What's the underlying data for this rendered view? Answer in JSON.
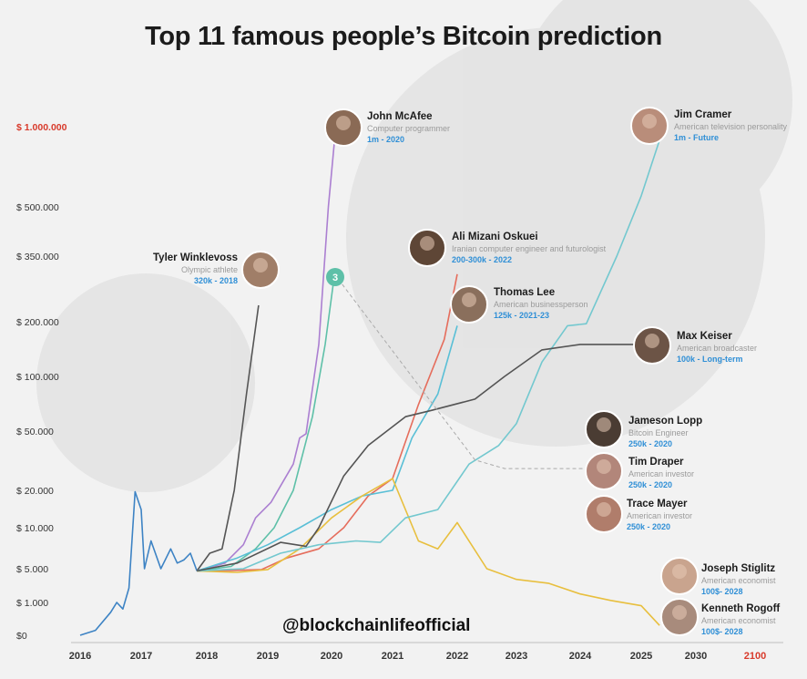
{
  "title": "Top 11 famous people’s Bitcoin prediction",
  "handle": "@blockchainlifeofficial",
  "chart_data": {
    "type": "line",
    "title": "Top 11 famous people’s Bitcoin prediction",
    "xlabel": "",
    "ylabel": "",
    "x_ticks": [
      {
        "label": "2016",
        "highlight": false
      },
      {
        "label": "2017",
        "highlight": false
      },
      {
        "label": "2018",
        "highlight": false
      },
      {
        "label": "2019",
        "highlight": false
      },
      {
        "label": "2020",
        "highlight": false
      },
      {
        "label": "2021",
        "highlight": false
      },
      {
        "label": "2022",
        "highlight": false
      },
      {
        "label": "2023",
        "highlight": false
      },
      {
        "label": "2024",
        "highlight": false
      },
      {
        "label": "2025",
        "highlight": false
      },
      {
        "label": "2030",
        "highlight": false
      },
      {
        "label": "2100",
        "highlight": true
      }
    ],
    "y_ticks": [
      {
        "label": "$0",
        "value": 0,
        "highlight": false
      },
      {
        "label": "$ 1.000",
        "value": 1000,
        "highlight": false
      },
      {
        "label": "$ 5.000",
        "value": 5000,
        "highlight": false
      },
      {
        "label": "$ 10.000",
        "value": 10000,
        "highlight": false
      },
      {
        "label": "$ 20.000",
        "value": 20000,
        "highlight": false
      },
      {
        "label": "$ 50.000",
        "value": 50000,
        "highlight": false
      },
      {
        "label": "$ 100.000",
        "value": 100000,
        "highlight": false
      },
      {
        "label": "$ 200.000",
        "value": 200000,
        "highlight": false
      },
      {
        "label": "$ 350.000",
        "value": 350000,
        "highlight": false
      },
      {
        "label": "$ 500.000",
        "value": 500000,
        "highlight": false
      },
      {
        "label": "$ 1.000.000",
        "value": 1000000,
        "highlight": true
      }
    ],
    "grid": false,
    "legend": "none",
    "series": [
      {
        "color": "#3d83c4",
        "points": [
          [
            2016.0,
            0
          ],
          [
            2016.25,
            150
          ],
          [
            2016.5,
            700
          ],
          [
            2016.6,
            1000
          ],
          [
            2016.7,
            800
          ],
          [
            2016.8,
            2000
          ],
          [
            2016.9,
            19500
          ],
          [
            2017.0,
            14000
          ],
          [
            2017.05,
            5000
          ],
          [
            2017.15,
            8000
          ],
          [
            2017.3,
            5000
          ],
          [
            2017.45,
            7000
          ],
          [
            2017.55,
            5500
          ],
          [
            2017.65,
            5800
          ],
          [
            2017.75,
            6500
          ],
          [
            2017.85,
            4500
          ]
        ]
      },
      {
        "color": "#555555",
        "points": [
          [
            2017.85,
            4500
          ],
          [
            2018.05,
            6500
          ],
          [
            2018.25,
            7000
          ],
          [
            2018.45,
            20000
          ],
          [
            2018.65,
            80000
          ],
          [
            2018.85,
            230000
          ]
        ]
      },
      {
        "color": "#ab7fd1",
        "points": [
          [
            2017.85,
            4500
          ],
          [
            2018.3,
            5500
          ],
          [
            2018.6,
            7500
          ],
          [
            2018.8,
            12000
          ],
          [
            2019.05,
            16000
          ],
          [
            2019.4,
            30000
          ],
          [
            2019.5,
            45000
          ],
          [
            2019.6,
            48000
          ],
          [
            2019.8,
            150000
          ],
          [
            2019.95,
            500000
          ],
          [
            2020.05,
            890000
          ]
        ]
      },
      {
        "color": "#5ec0a8",
        "points": [
          [
            2017.85,
            4500
          ],
          [
            2018.4,
            5200
          ],
          [
            2018.8,
            7000
          ],
          [
            2019.1,
            10000
          ],
          [
            2019.4,
            20000
          ],
          [
            2019.7,
            60000
          ],
          [
            2019.9,
            150000
          ],
          [
            2020.05,
            300000
          ]
        ]
      },
      {
        "color": "#e56d5c",
        "points": [
          [
            2017.85,
            4500
          ],
          [
            2018.4,
            4600
          ],
          [
            2018.9,
            4800
          ],
          [
            2019.3,
            6000
          ],
          [
            2019.8,
            7000
          ],
          [
            2020.2,
            10000
          ],
          [
            2020.6,
            18000
          ],
          [
            2021.0,
            24000
          ],
          [
            2021.4,
            70000
          ],
          [
            2021.8,
            160000
          ],
          [
            2022.0,
            300000
          ]
        ]
      },
      {
        "color": "#59bfd6",
        "points": [
          [
            2017.85,
            4500
          ],
          [
            2018.5,
            6000
          ],
          [
            2019.0,
            7500
          ],
          [
            2019.5,
            10000
          ],
          [
            2020.0,
            14000
          ],
          [
            2020.5,
            18000
          ],
          [
            2021.0,
            20000
          ],
          [
            2021.3,
            45000
          ],
          [
            2021.7,
            80000
          ],
          [
            2022.0,
            190000
          ]
        ]
      },
      {
        "color": "#e8bf3e",
        "points": [
          [
            2017.85,
            4500
          ],
          [
            2018.5,
            4200
          ],
          [
            2019.0,
            4800
          ],
          [
            2019.5,
            7000
          ],
          [
            2020.0,
            12000
          ],
          [
            2020.5,
            18000
          ],
          [
            2021.0,
            24000
          ],
          [
            2021.4,
            8000
          ],
          [
            2021.7,
            7000
          ],
          [
            2022.0,
            11000
          ],
          [
            2022.5,
            5000
          ],
          [
            2023.0,
            3000
          ],
          [
            2023.5,
            2500
          ],
          [
            2024.0,
            1500
          ],
          [
            2024.5,
            1100
          ],
          [
            2025.0,
            900
          ],
          [
            2025.3,
            300
          ]
        ]
      },
      {
        "color": "#73c8cf",
        "points": [
          [
            2017.85,
            4500
          ],
          [
            2018.6,
            5000
          ],
          [
            2019.2,
            6500
          ],
          [
            2019.8,
            7500
          ],
          [
            2020.4,
            8000
          ],
          [
            2020.8,
            7800
          ],
          [
            2021.2,
            12000
          ],
          [
            2021.7,
            14000
          ],
          [
            2022.2,
            30000
          ],
          [
            2022.7,
            40000
          ],
          [
            2023.0,
            55000
          ],
          [
            2023.4,
            120000
          ],
          [
            2023.8,
            190000
          ],
          [
            2024.1,
            195000
          ],
          [
            2024.6,
            350000
          ],
          [
            2025.0,
            550000
          ],
          [
            2025.3,
            890000
          ]
        ]
      },
      {
        "color": "#545454",
        "points": [
          [
            2017.85,
            4500
          ],
          [
            2018.5,
            5500
          ],
          [
            2019.2,
            7800
          ],
          [
            2019.6,
            7300
          ],
          [
            2019.8,
            10000
          ],
          [
            2020.2,
            25000
          ],
          [
            2020.6,
            40000
          ],
          [
            2021.2,
            60000
          ],
          [
            2021.6,
            65000
          ],
          [
            2022.3,
            75000
          ],
          [
            2022.8,
            100000
          ],
          [
            2023.4,
            140000
          ],
          [
            2024.0,
            150000
          ],
          [
            2025.0,
            150000
          ]
        ]
      },
      {
        "color": "#aaaaaa",
        "dashed": true,
        "points": [
          [
            2020.05,
            300000
          ],
          [
            2022.3,
            32000
          ],
          [
            2022.8,
            28000
          ],
          [
            2023.4,
            28000
          ],
          [
            2024.0,
            28000
          ],
          [
            2024.15,
            28000
          ]
        ]
      }
    ],
    "people": [
      {
        "name": "John McAfee",
        "role": "Computer programmer",
        "prediction": "1m - 2020",
        "align": "right",
        "avatar": "#8a6a55"
      },
      {
        "name": "Jim Cramer",
        "role": "American television personality",
        "prediction": "1m - Future",
        "align": "right",
        "avatar": "#b98d7a"
      },
      {
        "name": "Ali Mizani Oskuei",
        "role": "Iranian computer engineer and futurologist",
        "prediction": "200-300k - 2022",
        "align": "right",
        "avatar": "#5e4636"
      },
      {
        "name": "Tyler Winklevoss",
        "role": "Olympic athlete",
        "prediction": "320k - 2018",
        "align": "left",
        "avatar": "#a07e68"
      },
      {
        "name": "Thomas Lee",
        "role": "American businessperson",
        "prediction": "125k - 2021-23",
        "align": "right",
        "avatar": "#8a6f5c"
      },
      {
        "name": "Max Keiser",
        "role": "American broadcaster",
        "prediction": "100k - Long-term",
        "align": "right",
        "avatar": "#6c5446"
      },
      {
        "name": "Jameson Lopp",
        "role": "Bitcoin Engineer",
        "prediction": "250k - 2020",
        "align": "right",
        "avatar": "#4a3c33"
      },
      {
        "name": "Tim Draper",
        "role": "American investor",
        "prediction": "250k - 2020",
        "align": "right",
        "avatar": "#b2867a"
      },
      {
        "name": "Trace Mayer",
        "role": "American investor",
        "prediction": "250k - 2020",
        "align": "right",
        "avatar": "#b07d6b"
      },
      {
        "name": "Joseph Stiglitz",
        "role": "American economist",
        "prediction": "100$- 2028",
        "align": "right",
        "avatar": "#c9a48e"
      },
      {
        "name": "Kenneth Rogoff",
        "role": "American economist",
        "prediction": "100$- 2028",
        "align": "right",
        "avatar": "#a88b7c"
      }
    ],
    "marker": {
      "label": "3",
      "color": "#5ec0a8"
    }
  }
}
